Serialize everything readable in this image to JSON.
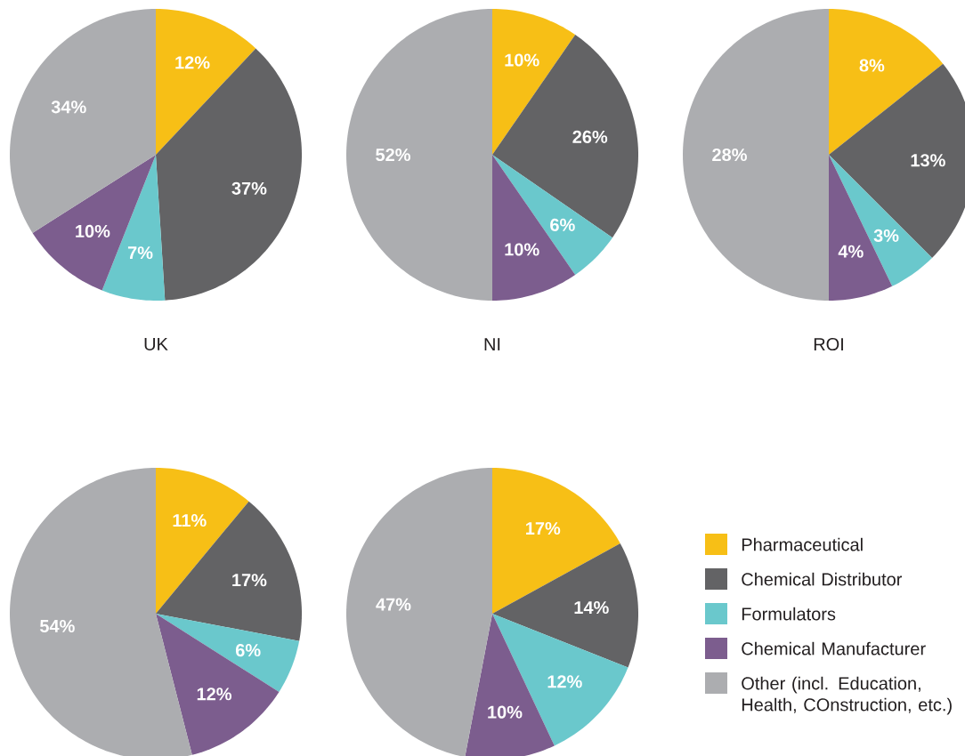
{
  "chart_data": [
    {
      "type": "pie",
      "title": "UK",
      "categories": [
        null,
        null,
        null,
        null,
        null
      ],
      "values": [
        12,
        37,
        7,
        10,
        34
      ],
      "colors": [
        "#f7bf16",
        "#636365",
        "#6ac8cc",
        "#7c5d8e",
        "#acadb0"
      ],
      "value_labels": [
        "12%",
        "37%",
        "7%",
        "10%",
        "34%"
      ]
    },
    {
      "type": "pie",
      "title": "NI",
      "categories": [
        null,
        null,
        null,
        null,
        null
      ],
      "values": [
        10,
        26,
        6,
        10,
        52
      ],
      "colors": [
        "#f7bf16",
        "#636365",
        "#6ac8cc",
        "#7c5d8e",
        "#acadb0"
      ],
      "value_labels": [
        "10%",
        "26%",
        "6%",
        "10%",
        "52%"
      ]
    },
    {
      "type": "pie",
      "title": "ROI",
      "categories": [
        null,
        null,
        null,
        null,
        null
      ],
      "values": [
        8,
        13,
        3,
        4,
        28
      ],
      "colors": [
        "#f7bf16",
        "#636365",
        "#6ac8cc",
        "#7c5d8e",
        "#acadb0"
      ],
      "value_labels": [
        "8%",
        "13%",
        "3%",
        "4%",
        "28%"
      ]
    },
    {
      "type": "pie",
      "categories": [
        null,
        null,
        null,
        null,
        null
      ],
      "values": [
        11,
        17,
        6,
        12,
        54
      ],
      "colors": [
        "#f7bf16",
        "#636365",
        "#6ac8cc",
        "#7c5d8e",
        "#acadb0"
      ],
      "value_labels": [
        "11%",
        "17%",
        "6%",
        "12%",
        "54%"
      ]
    },
    {
      "type": "pie",
      "categories": [
        "Pharmaceutical",
        "Chemical Distributor",
        "Formulators",
        "Chemical Manufacturer",
        "Other (incl. Education, Health, COnstruction, etc.)"
      ],
      "values": [
        17,
        14,
        12,
        10,
        47
      ],
      "colors": [
        "#f7bf16",
        "#636365",
        "#6ac8cc",
        "#7c5d8e",
        "#acadb0"
      ],
      "value_labels": [
        "17%",
        "14%",
        "12%",
        "10%",
        "47%"
      ],
      "legend": "right"
    }
  ]
}
